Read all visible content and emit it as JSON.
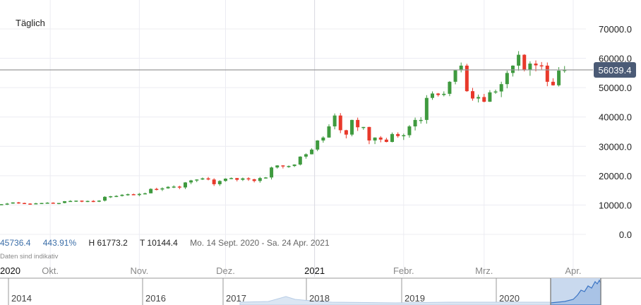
{
  "header": {
    "period_label": "Täglich"
  },
  "stats": {
    "change": "45736.4",
    "change_pct": "443.91%",
    "high": "H 61773.2",
    "low": "T 10144.4",
    "range": "Mo. 14 Sept. 2020 - Sa. 24 Apr. 2021"
  },
  "note": "Daten sind indikativ",
  "navigator": {
    "years": [
      "2014",
      "2016",
      "2017",
      "2018",
      "2019",
      "2020"
    ]
  },
  "colors": {
    "up": "#3f9a3f",
    "down": "#e8392b",
    "price_label_bg": "#4b5b76",
    "grid": "#ececf2"
  },
  "chart_data": {
    "type": "candlestick",
    "title": "",
    "ylim": [
      0,
      70000
    ],
    "y_ticks": [
      "0.0",
      "10000.0",
      "20000.0",
      "30000.0",
      "40000.0",
      "50000.0",
      "60000.0",
      "70000.0"
    ],
    "y_tick_values": [
      0,
      10000,
      20000,
      30000,
      40000,
      50000,
      60000,
      70000
    ],
    "x_labels": [
      {
        "label": "2020",
        "day": -18,
        "bold": true
      },
      {
        "label": "Okt.",
        "day": 17
      },
      {
        "label": "Nov.",
        "day": 48
      },
      {
        "label": "Dez.",
        "day": 78
      },
      {
        "label": "2021",
        "day": 109,
        "bold": true
      },
      {
        "label": "Febr.",
        "day": 140
      },
      {
        "label": "Mrz.",
        "day": 168
      },
      {
        "label": "Apr.",
        "day": 199
      }
    ],
    "current_price": 56039.4,
    "current_price_label": "56039.4",
    "candle_step_days": 2,
    "closes": [
      10300,
      10500,
      10900,
      10700,
      10500,
      10300,
      10600,
      10700,
      10800,
      10600,
      10700,
      11300,
      11400,
      11500,
      11400,
      11400,
      11300,
      11500,
      12800,
      13000,
      13100,
      13500,
      13700,
      13400,
      13800,
      14000,
      15500,
      15300,
      15700,
      16200,
      16300,
      16000,
      17700,
      18400,
      18700,
      19100,
      18700,
      17100,
      18200,
      19000,
      19200,
      18600,
      19100,
      18800,
      18200,
      19200,
      19400,
      22800,
      23500,
      23200,
      23300,
      23800,
      26500,
      27300,
      28900,
      32000,
      33000,
      36800,
      40500,
      35500,
      34000,
      39000,
      36500,
      36600,
      32000,
      33000,
      32300,
      31500,
      34200,
      33500,
      33800,
      36800,
      39000,
      39000,
      46500,
      48000,
      47500,
      47900,
      52000,
      55900,
      57500,
      48800,
      46300,
      46800,
      45200,
      48400,
      48700,
      51200,
      55000,
      57500,
      61200,
      56000,
      58200,
      57600,
      57500,
      52000,
      50800,
      55800,
      56039
    ]
  }
}
